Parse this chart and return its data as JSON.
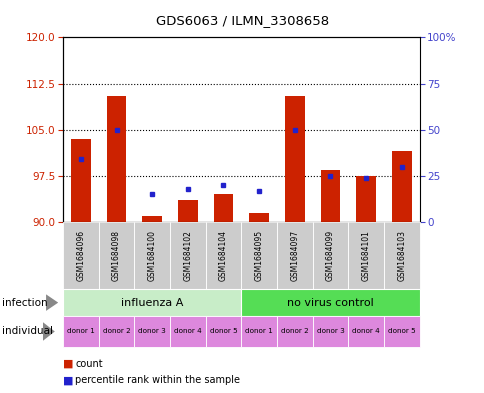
{
  "title": "GDS6063 / ILMN_3308658",
  "samples": [
    "GSM1684096",
    "GSM1684098",
    "GSM1684100",
    "GSM1684102",
    "GSM1684104",
    "GSM1684095",
    "GSM1684097",
    "GSM1684099",
    "GSM1684101",
    "GSM1684103"
  ],
  "count_values": [
    103.5,
    110.5,
    91.0,
    93.5,
    94.5,
    91.5,
    110.5,
    98.5,
    97.5,
    101.5
  ],
  "percentile_values": [
    34,
    50,
    15,
    18,
    20,
    17,
    50,
    25,
    24,
    30
  ],
  "ylim_left": [
    90,
    120
  ],
  "ylim_right": [
    0,
    100
  ],
  "yticks_left": [
    90,
    97.5,
    105,
    112.5,
    120
  ],
  "yticks_right": [
    0,
    25,
    50,
    75,
    100
  ],
  "infection_groups": [
    {
      "label": "influenza A",
      "start": 0,
      "end": 4,
      "color": "#c8edc8"
    },
    {
      "label": "no virus control",
      "start": 5,
      "end": 9,
      "color": "#55dd55"
    }
  ],
  "individual_labels": [
    "donor 1",
    "donor 2",
    "donor 3",
    "donor 4",
    "donor 5",
    "donor 1",
    "donor 2",
    "donor 3",
    "donor 4",
    "donor 5"
  ],
  "bar_color": "#cc2200",
  "percentile_color": "#2222cc",
  "individual_color": "#dd88dd",
  "grid_color": "#000000",
  "label_color_left": "#cc2200",
  "label_color_right": "#4444cc",
  "xtick_bg_color": "#cccccc",
  "bar_width": 0.55,
  "baseline": 90
}
